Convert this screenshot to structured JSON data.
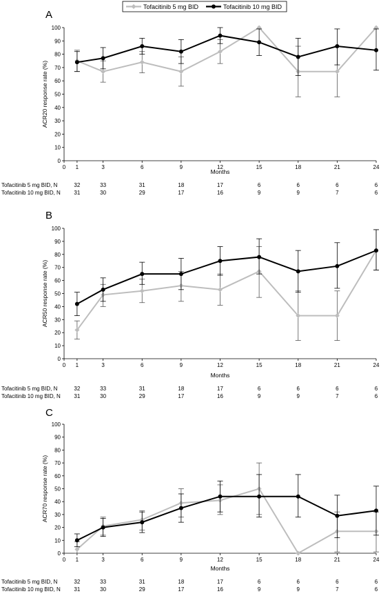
{
  "legend": {
    "items": [
      {
        "label": "Tofacitinib 5 mg BID",
        "color": "#bdbdbd"
      },
      {
        "label": "Tofacitinib 10 mg BID",
        "color": "#000000"
      }
    ]
  },
  "chart_data": [
    {
      "type": "line",
      "panel": "A",
      "xlabel": "Months",
      "ylabel": "ACR20 response rate (%)",
      "xlim": [
        0,
        24
      ],
      "ylim": [
        0,
        100
      ],
      "xticks": [
        0,
        1,
        3,
        6,
        9,
        12,
        15,
        18,
        21,
        24
      ],
      "yticks": [
        0,
        10,
        20,
        30,
        40,
        50,
        60,
        70,
        80,
        90,
        100
      ],
      "series": [
        {
          "name": "Tofacitinib 5 mg BID",
          "color": "#bdbdbd",
          "x": [
            1,
            3,
            6,
            9,
            12,
            15,
            18,
            21,
            24
          ],
          "y": [
            75,
            67,
            74,
            67,
            82,
            100,
            67,
            67,
            100
          ],
          "err_low": [
            67,
            59,
            66,
            56,
            73,
            100,
            48,
            48,
            100
          ],
          "err_high": [
            83,
            75,
            82,
            78,
            91,
            100,
            86,
            86,
            100
          ]
        },
        {
          "name": "Tofacitinib 10 mg BID",
          "color": "#000000",
          "x": [
            1,
            3,
            6,
            9,
            12,
            15,
            18,
            21,
            24
          ],
          "y": [
            74,
            77,
            86,
            82,
            94,
            89,
            78,
            86,
            83
          ],
          "err_low": [
            67,
            69,
            80,
            73,
            88,
            79,
            64,
            72,
            68
          ],
          "err_high": [
            82,
            85,
            92,
            91,
            100,
            99,
            92,
            99,
            99
          ]
        }
      ],
      "n_table": {
        "rows": [
          {
            "label": "Tofacitinib 5 mg BID, N",
            "values": [
              "32",
              "33",
              "31",
              "18",
              "17",
              "6",
              "6",
              "6",
              "6"
            ]
          },
          {
            "label": "Tofacitinib 10 mg BID, N",
            "values": [
              "31",
              "30",
              "29",
              "17",
              "16",
              "9",
              "9",
              "7",
              "6"
            ]
          }
        ]
      }
    },
    {
      "type": "line",
      "panel": "B",
      "xlabel": "Months",
      "ylabel": "ACR50 response rate (%)",
      "xlim": [
        0,
        24
      ],
      "ylim": [
        0,
        100
      ],
      "xticks": [
        0,
        1,
        3,
        6,
        9,
        12,
        15,
        18,
        21,
        24
      ],
      "yticks": [
        0,
        10,
        20,
        30,
        40,
        50,
        60,
        70,
        80,
        90,
        100
      ],
      "series": [
        {
          "name": "Tofacitinib 5 mg BID",
          "color": "#bdbdbd",
          "x": [
            1,
            3,
            6,
            9,
            12,
            15,
            18,
            21,
            24
          ],
          "y": [
            22,
            49,
            52,
            56,
            53,
            67,
            33,
            33,
            83
          ],
          "err_low": [
            15,
            40,
            43,
            44,
            41,
            47,
            14,
            14,
            68
          ],
          "err_high": [
            29,
            57,
            61,
            67,
            65,
            86,
            52,
            52,
            99
          ]
        },
        {
          "name": "Tofacitinib 10 mg BID",
          "color": "#000000",
          "x": [
            1,
            3,
            6,
            9,
            12,
            15,
            18,
            21,
            24
          ],
          "y": [
            42,
            53,
            65,
            65,
            75,
            78,
            67,
            71,
            83
          ],
          "err_low": [
            33,
            44,
            57,
            53,
            64,
            65,
            51,
            54,
            68
          ],
          "err_high": [
            51,
            62,
            74,
            77,
            86,
            92,
            83,
            89,
            99
          ]
        }
      ],
      "n_table": {
        "rows": [
          {
            "label": "Tofacitinib 5 mg BID, N",
            "values": [
              "32",
              "33",
              "31",
              "18",
              "17",
              "6",
              "6",
              "6",
              "6"
            ]
          },
          {
            "label": "Tofacitinib 10 mg BID, N",
            "values": [
              "31",
              "30",
              "29",
              "17",
              "16",
              "9",
              "9",
              "7",
              "6"
            ]
          }
        ]
      }
    },
    {
      "type": "line",
      "panel": "C",
      "xlabel": "Months",
      "ylabel": "ACR70 response rate (%)",
      "xlim": [
        0,
        24
      ],
      "ylim": [
        0,
        100
      ],
      "xticks": [
        0,
        1,
        3,
        6,
        9,
        12,
        15,
        18,
        21,
        24
      ],
      "yticks": [
        0,
        10,
        20,
        30,
        40,
        50,
        60,
        70,
        80,
        90,
        100
      ],
      "series": [
        {
          "name": "Tofacitinib 5 mg BID",
          "color": "#bdbdbd",
          "x": [
            1,
            3,
            6,
            9,
            12,
            15,
            18,
            21,
            24
          ],
          "y": [
            3,
            21,
            26,
            39,
            41,
            50,
            0,
            17,
            17
          ],
          "err_low": [
            0,
            14,
            18,
            28,
            30,
            30,
            0,
            1,
            1
          ],
          "err_high": [
            9,
            28,
            33,
            50,
            53,
            70,
            0,
            32,
            32
          ]
        },
        {
          "name": "Tofacitinib 10 mg BID",
          "color": "#000000",
          "x": [
            1,
            3,
            6,
            9,
            12,
            15,
            18,
            21,
            24
          ],
          "y": [
            10,
            20,
            24,
            35,
            44,
            44,
            44,
            29,
            33
          ],
          "err_low": [
            5,
            13,
            16,
            24,
            32,
            28,
            28,
            12,
            14
          ],
          "err_high": [
            15,
            27,
            32,
            46,
            56,
            61,
            61,
            45,
            52
          ]
        }
      ],
      "n_table": {
        "rows": [
          {
            "label": "Tofacitinib 5 mg BID, N",
            "values": [
              "32",
              "33",
              "31",
              "18",
              "17",
              "6",
              "6",
              "6",
              "6"
            ]
          },
          {
            "label": "Tofacitinib 10 mg BID, N",
            "values": [
              "31",
              "30",
              "29",
              "17",
              "16",
              "9",
              "9",
              "7",
              "6"
            ]
          }
        ]
      }
    }
  ]
}
